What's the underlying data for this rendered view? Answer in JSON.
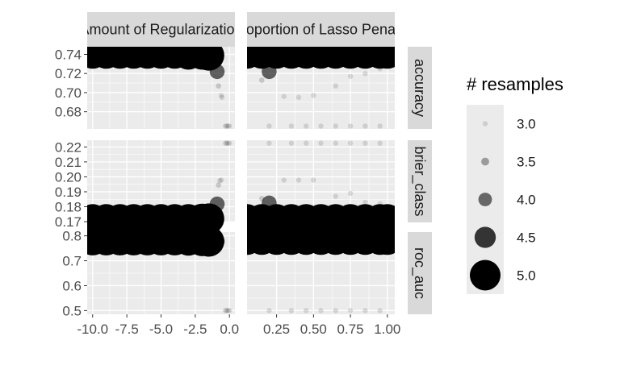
{
  "chart_data": {
    "type": "scatter",
    "facets": {
      "columns": [
        "Amount of Regularization",
        "Proportion of Lasso Penalty"
      ],
      "rows": [
        "accuracy",
        "brier_class",
        "roc_auc"
      ]
    },
    "x_axes": [
      {
        "ticks": [
          -10.0,
          -7.5,
          -5.0,
          -2.5,
          0.0
        ],
        "tick_labels": [
          "-10.0",
          "-7.5",
          "-5.0",
          "-2.5",
          "0.0"
        ],
        "xlim": [
          -10.4,
          0.4
        ]
      },
      {
        "ticks": [
          0.25,
          0.5,
          0.75,
          1.0
        ],
        "tick_labels": [
          "0.25",
          "0.50",
          "0.75",
          "1.00"
        ],
        "xlim": [
          0.05,
          1.05
        ]
      }
    ],
    "y_axes": [
      {
        "metric": "accuracy",
        "ticks": [
          0.68,
          0.7,
          0.72,
          0.74
        ],
        "tick_labels": [
          "0.68",
          "0.70",
          "0.72",
          "0.74"
        ],
        "ylim": [
          0.662,
          0.748
        ]
      },
      {
        "metric": "brier_class",
        "ticks": [
          0.17,
          0.18,
          0.19,
          0.2,
          0.21,
          0.22
        ],
        "tick_labels": [
          "0.17",
          "0.18",
          "0.19",
          "0.20",
          "0.21",
          "0.22"
        ],
        "ylim": [
          0.1695,
          0.2245
        ]
      },
      {
        "metric": "roc_auc",
        "ticks": [
          0.5,
          0.6,
          0.7,
          0.8
        ],
        "tick_labels": [
          "0.5",
          "0.6",
          "0.7",
          "0.8"
        ],
        "ylim": [
          0.485,
          0.815
        ]
      }
    ],
    "legend": {
      "title": "# resamples",
      "placement": "right",
      "levels": [
        {
          "label": "3.0",
          "value": 3.0
        },
        {
          "label": "3.5",
          "value": 3.5
        },
        {
          "label": "4.0",
          "value": 4.0
        },
        {
          "label": "4.5",
          "value": 4.5
        },
        {
          "label": "5.0",
          "value": 5.0
        }
      ]
    },
    "grid": true,
    "series": [
      {
        "facet_col": 0,
        "facet_row": 0,
        "points": [
          {
            "x": -10.0,
            "y": 0.741,
            "n": 5
          },
          {
            "x": -9.0,
            "y": 0.741,
            "n": 5
          },
          {
            "x": -8.0,
            "y": 0.741,
            "n": 5
          },
          {
            "x": -7.0,
            "y": 0.741,
            "n": 5
          },
          {
            "x": -6.0,
            "y": 0.741,
            "n": 5
          },
          {
            "x": -5.0,
            "y": 0.741,
            "n": 5
          },
          {
            "x": -4.0,
            "y": 0.741,
            "n": 5
          },
          {
            "x": -3.0,
            "y": 0.74,
            "n": 5
          },
          {
            "x": -2.0,
            "y": 0.74,
            "n": 5
          },
          {
            "x": -1.5,
            "y": 0.739,
            "n": 5
          },
          {
            "x": -0.9,
            "y": 0.722,
            "n": 4.1
          },
          {
            "x": -0.8,
            "y": 0.707,
            "n": 3.1
          },
          {
            "x": -0.6,
            "y": 0.697,
            "n": 3.0
          },
          {
            "x": -0.55,
            "y": 0.695,
            "n": 3.0
          },
          {
            "x": -0.3,
            "y": 0.665,
            "n": 3.0
          },
          {
            "x": -0.2,
            "y": 0.665,
            "n": 3.0
          },
          {
            "x": -0.1,
            "y": 0.665,
            "n": 3.0
          },
          {
            "x": 0.0,
            "y": 0.665,
            "n": 3.0
          }
        ]
      },
      {
        "facet_col": 1,
        "facet_row": 0,
        "points": [
          {
            "x": 0.05,
            "y": 0.741,
            "n": 5
          },
          {
            "x": 0.15,
            "y": 0.741,
            "n": 5
          },
          {
            "x": 0.25,
            "y": 0.741,
            "n": 5
          },
          {
            "x": 0.35,
            "y": 0.741,
            "n": 5
          },
          {
            "x": 0.45,
            "y": 0.741,
            "n": 5
          },
          {
            "x": 0.55,
            "y": 0.741,
            "n": 5
          },
          {
            "x": 0.65,
            "y": 0.741,
            "n": 5
          },
          {
            "x": 0.75,
            "y": 0.741,
            "n": 5
          },
          {
            "x": 0.85,
            "y": 0.741,
            "n": 5
          },
          {
            "x": 0.95,
            "y": 0.741,
            "n": 5
          },
          {
            "x": 1.0,
            "y": 0.741,
            "n": 5
          },
          {
            "x": 0.2,
            "y": 0.722,
            "n": 4.1
          },
          {
            "x": 0.15,
            "y": 0.713,
            "n": 3.1
          },
          {
            "x": 0.65,
            "y": 0.707,
            "n": 3.0
          },
          {
            "x": 0.3,
            "y": 0.696,
            "n": 3.0
          },
          {
            "x": 0.4,
            "y": 0.695,
            "n": 3.0
          },
          {
            "x": 0.5,
            "y": 0.697,
            "n": 3.0
          },
          {
            "x": 0.75,
            "y": 0.717,
            "n": 3.0
          },
          {
            "x": 0.85,
            "y": 0.72,
            "n": 3.0
          },
          {
            "x": 0.95,
            "y": 0.725,
            "n": 3.0
          },
          {
            "x": 0.6,
            "y": 0.73,
            "n": 3.0
          },
          {
            "x": 0.2,
            "y": 0.665,
            "n": 3.0
          },
          {
            "x": 0.35,
            "y": 0.665,
            "n": 3.0
          },
          {
            "x": 0.45,
            "y": 0.665,
            "n": 3.0
          },
          {
            "x": 0.55,
            "y": 0.665,
            "n": 3.0
          },
          {
            "x": 0.65,
            "y": 0.665,
            "n": 3.0
          },
          {
            "x": 0.75,
            "y": 0.665,
            "n": 3.0
          },
          {
            "x": 0.85,
            "y": 0.665,
            "n": 3.0
          },
          {
            "x": 0.95,
            "y": 0.665,
            "n": 3.0
          }
        ]
      },
      {
        "facet_col": 0,
        "facet_row": 1,
        "points": [
          {
            "x": -10.0,
            "y": 0.1715,
            "n": 5
          },
          {
            "x": -9.0,
            "y": 0.1715,
            "n": 5
          },
          {
            "x": -8.0,
            "y": 0.1715,
            "n": 5
          },
          {
            "x": -7.0,
            "y": 0.1715,
            "n": 5
          },
          {
            "x": -6.0,
            "y": 0.1715,
            "n": 5
          },
          {
            "x": -5.0,
            "y": 0.1715,
            "n": 5
          },
          {
            "x": -4.0,
            "y": 0.1715,
            "n": 5
          },
          {
            "x": -3.0,
            "y": 0.1715,
            "n": 5
          },
          {
            "x": -2.0,
            "y": 0.1718,
            "n": 5
          },
          {
            "x": -1.5,
            "y": 0.172,
            "n": 5
          },
          {
            "x": -0.9,
            "y": 0.1818,
            "n": 4.1
          },
          {
            "x": -0.8,
            "y": 0.1945,
            "n": 3.1
          },
          {
            "x": -0.7,
            "y": 0.1975,
            "n": 3.0
          },
          {
            "x": -0.6,
            "y": 0.1978,
            "n": 3.0
          },
          {
            "x": -0.3,
            "y": 0.2225,
            "n": 3.0
          },
          {
            "x": -0.2,
            "y": 0.2225,
            "n": 3.0
          },
          {
            "x": -0.1,
            "y": 0.2225,
            "n": 3.0
          },
          {
            "x": 0.0,
            "y": 0.2225,
            "n": 3.0
          }
        ]
      },
      {
        "facet_col": 1,
        "facet_row": 1,
        "points": [
          {
            "x": 0.05,
            "y": 0.1715,
            "n": 5
          },
          {
            "x": 0.15,
            "y": 0.1715,
            "n": 5
          },
          {
            "x": 0.25,
            "y": 0.1715,
            "n": 5
          },
          {
            "x": 0.35,
            "y": 0.1715,
            "n": 5
          },
          {
            "x": 0.45,
            "y": 0.1715,
            "n": 5
          },
          {
            "x": 0.55,
            "y": 0.1715,
            "n": 5
          },
          {
            "x": 0.65,
            "y": 0.1715,
            "n": 5
          },
          {
            "x": 0.75,
            "y": 0.1715,
            "n": 5
          },
          {
            "x": 0.85,
            "y": 0.1715,
            "n": 5
          },
          {
            "x": 0.95,
            "y": 0.1715,
            "n": 5
          },
          {
            "x": 1.0,
            "y": 0.1715,
            "n": 5
          },
          {
            "x": 0.2,
            "y": 0.1825,
            "n": 4.1
          },
          {
            "x": 0.15,
            "y": 0.1855,
            "n": 3.1
          },
          {
            "x": 0.3,
            "y": 0.1978,
            "n": 3.0
          },
          {
            "x": 0.4,
            "y": 0.1978,
            "n": 3.0
          },
          {
            "x": 0.5,
            "y": 0.1978,
            "n": 3.0
          },
          {
            "x": 0.65,
            "y": 0.187,
            "n": 3.0
          },
          {
            "x": 0.75,
            "y": 0.189,
            "n": 3.0
          },
          {
            "x": 0.85,
            "y": 0.183,
            "n": 3.0
          },
          {
            "x": 0.95,
            "y": 0.182,
            "n": 3.0
          },
          {
            "x": 0.2,
            "y": 0.2225,
            "n": 3.0
          },
          {
            "x": 0.35,
            "y": 0.2225,
            "n": 3.0
          },
          {
            "x": 0.45,
            "y": 0.2225,
            "n": 3.0
          },
          {
            "x": 0.55,
            "y": 0.2225,
            "n": 3.0
          },
          {
            "x": 0.65,
            "y": 0.2225,
            "n": 3.0
          },
          {
            "x": 0.75,
            "y": 0.2225,
            "n": 3.0
          },
          {
            "x": 0.85,
            "y": 0.2225,
            "n": 3.0
          },
          {
            "x": 0.95,
            "y": 0.2225,
            "n": 3.0
          }
        ]
      },
      {
        "facet_col": 0,
        "facet_row": 2,
        "points": [
          {
            "x": -10.0,
            "y": 0.783,
            "n": 5
          },
          {
            "x": -9.0,
            "y": 0.783,
            "n": 5
          },
          {
            "x": -8.0,
            "y": 0.783,
            "n": 5
          },
          {
            "x": -7.0,
            "y": 0.783,
            "n": 5
          },
          {
            "x": -6.0,
            "y": 0.783,
            "n": 5
          },
          {
            "x": -5.0,
            "y": 0.783,
            "n": 5
          },
          {
            "x": -4.0,
            "y": 0.783,
            "n": 5
          },
          {
            "x": -3.0,
            "y": 0.782,
            "n": 5
          },
          {
            "x": -2.0,
            "y": 0.78,
            "n": 5
          },
          {
            "x": -1.5,
            "y": 0.778,
            "n": 5
          },
          {
            "x": -0.9,
            "y": 0.778,
            "n": 4.1
          },
          {
            "x": -0.7,
            "y": 0.765,
            "n": 3.0
          },
          {
            "x": -0.3,
            "y": 0.5,
            "n": 3.0
          },
          {
            "x": -0.2,
            "y": 0.5,
            "n": 3.0
          },
          {
            "x": -0.1,
            "y": 0.5,
            "n": 3.0
          },
          {
            "x": 0.0,
            "y": 0.5,
            "n": 3.0
          }
        ]
      },
      {
        "facet_col": 1,
        "facet_row": 2,
        "points": [
          {
            "x": 0.05,
            "y": 0.785,
            "n": 5
          },
          {
            "x": 0.15,
            "y": 0.785,
            "n": 5
          },
          {
            "x": 0.25,
            "y": 0.785,
            "n": 5
          },
          {
            "x": 0.35,
            "y": 0.785,
            "n": 5
          },
          {
            "x": 0.45,
            "y": 0.785,
            "n": 5
          },
          {
            "x": 0.55,
            "y": 0.785,
            "n": 5
          },
          {
            "x": 0.65,
            "y": 0.785,
            "n": 5
          },
          {
            "x": 0.75,
            "y": 0.785,
            "n": 5
          },
          {
            "x": 0.85,
            "y": 0.785,
            "n": 5
          },
          {
            "x": 0.95,
            "y": 0.785,
            "n": 5
          },
          {
            "x": 1.0,
            "y": 0.785,
            "n": 5
          },
          {
            "x": 0.2,
            "y": 0.5,
            "n": 3.0
          },
          {
            "x": 0.35,
            "y": 0.5,
            "n": 3.0
          },
          {
            "x": 0.45,
            "y": 0.5,
            "n": 3.0
          },
          {
            "x": 0.55,
            "y": 0.5,
            "n": 3.0
          },
          {
            "x": 0.65,
            "y": 0.5,
            "n": 3.0
          },
          {
            "x": 0.75,
            "y": 0.5,
            "n": 3.0
          },
          {
            "x": 0.85,
            "y": 0.5,
            "n": 3.0
          },
          {
            "x": 0.95,
            "y": 0.5,
            "n": 3.0
          }
        ]
      }
    ]
  }
}
